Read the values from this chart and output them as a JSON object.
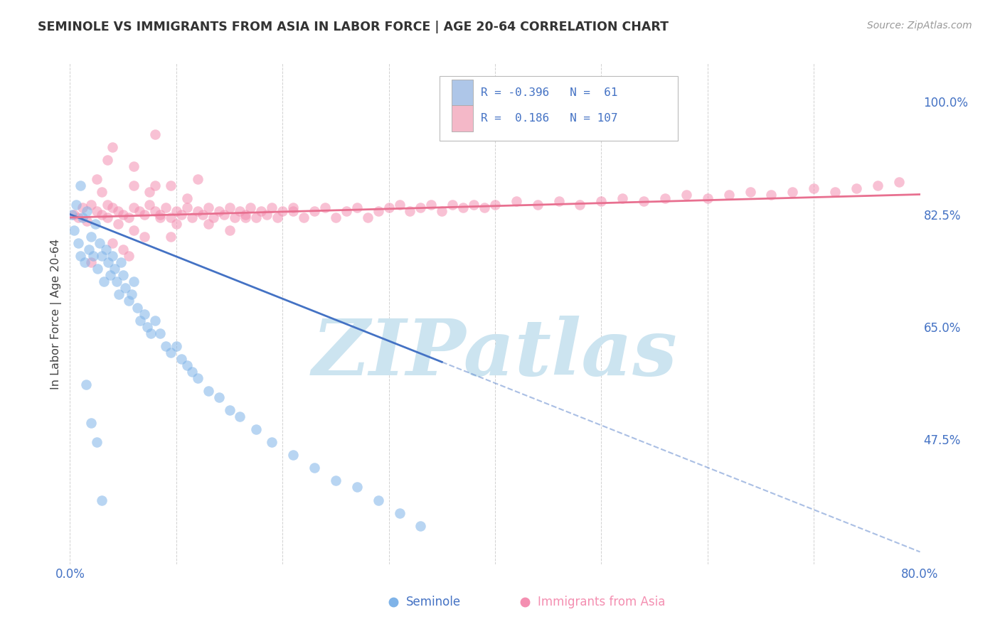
{
  "title": "SEMINOLE VS IMMIGRANTS FROM ASIA IN LABOR FORCE | AGE 20-64 CORRELATION CHART",
  "source_text": "Source: ZipAtlas.com",
  "ylabel": "In Labor Force | Age 20-64",
  "xlim": [
    0.0,
    0.8
  ],
  "ylim": [
    0.28,
    1.06
  ],
  "xticks": [
    0.0,
    0.1,
    0.2,
    0.3,
    0.4,
    0.5,
    0.6,
    0.7,
    0.8
  ],
  "xticklabels": [
    "0.0%",
    "",
    "",
    "",
    "",
    "",
    "",
    "",
    "80.0%"
  ],
  "yticks_right": [
    0.475,
    0.65,
    0.825,
    1.0
  ],
  "yticklabels_right": [
    "47.5%",
    "65.0%",
    "82.5%",
    "100.0%"
  ],
  "grid_color": "#cccccc",
  "background_color": "#ffffff",
  "watermark_text": "ZIPatlas",
  "watermark_color": "#cce4f0",
  "legend": {
    "R1": "-0.396",
    "N1": "61",
    "R2": "0.186",
    "N2": "107",
    "color1": "#aec6e8",
    "color2": "#f4b8c8"
  },
  "seminole_scatter_color": "#7fb3e8",
  "asia_scatter_color": "#f48fb1",
  "trend_blue_color": "#4472c4",
  "trend_pink_color": "#e87090",
  "seminole_x": [
    0.002,
    0.004,
    0.006,
    0.008,
    0.01,
    0.012,
    0.014,
    0.016,
    0.018,
    0.02,
    0.022,
    0.024,
    0.026,
    0.028,
    0.03,
    0.032,
    0.034,
    0.036,
    0.038,
    0.04,
    0.042,
    0.044,
    0.046,
    0.048,
    0.05,
    0.052,
    0.055,
    0.058,
    0.06,
    0.063,
    0.066,
    0.07,
    0.073,
    0.076,
    0.08,
    0.085,
    0.09,
    0.095,
    0.1,
    0.105,
    0.11,
    0.115,
    0.12,
    0.13,
    0.14,
    0.15,
    0.16,
    0.175,
    0.19,
    0.21,
    0.23,
    0.25,
    0.27,
    0.29,
    0.31,
    0.33,
    0.01,
    0.015,
    0.02,
    0.025,
    0.03
  ],
  "seminole_y": [
    0.825,
    0.8,
    0.84,
    0.78,
    0.76,
    0.82,
    0.75,
    0.83,
    0.77,
    0.79,
    0.76,
    0.81,
    0.74,
    0.78,
    0.76,
    0.72,
    0.77,
    0.75,
    0.73,
    0.76,
    0.74,
    0.72,
    0.7,
    0.75,
    0.73,
    0.71,
    0.69,
    0.7,
    0.72,
    0.68,
    0.66,
    0.67,
    0.65,
    0.64,
    0.66,
    0.64,
    0.62,
    0.61,
    0.62,
    0.6,
    0.59,
    0.58,
    0.57,
    0.55,
    0.54,
    0.52,
    0.51,
    0.49,
    0.47,
    0.45,
    0.43,
    0.41,
    0.4,
    0.38,
    0.36,
    0.34,
    0.87,
    0.56,
    0.5,
    0.47,
    0.38
  ],
  "asia_x": [
    0.004,
    0.008,
    0.012,
    0.016,
    0.02,
    0.025,
    0.03,
    0.035,
    0.04,
    0.045,
    0.05,
    0.055,
    0.06,
    0.065,
    0.07,
    0.075,
    0.08,
    0.085,
    0.09,
    0.095,
    0.1,
    0.105,
    0.11,
    0.115,
    0.12,
    0.125,
    0.13,
    0.135,
    0.14,
    0.145,
    0.15,
    0.155,
    0.16,
    0.165,
    0.17,
    0.175,
    0.18,
    0.185,
    0.19,
    0.195,
    0.2,
    0.21,
    0.22,
    0.23,
    0.24,
    0.25,
    0.26,
    0.27,
    0.28,
    0.29,
    0.3,
    0.31,
    0.32,
    0.33,
    0.34,
    0.35,
    0.36,
    0.37,
    0.38,
    0.39,
    0.4,
    0.42,
    0.44,
    0.46,
    0.48,
    0.5,
    0.52,
    0.54,
    0.56,
    0.58,
    0.6,
    0.62,
    0.64,
    0.66,
    0.68,
    0.7,
    0.72,
    0.74,
    0.76,
    0.78,
    0.06,
    0.08,
    0.04,
    0.02,
    0.1,
    0.15,
    0.025,
    0.03,
    0.035,
    0.06,
    0.075,
    0.095,
    0.11,
    0.04,
    0.08,
    0.12,
    0.055,
    0.07,
    0.045,
    0.035,
    0.06,
    0.085,
    0.095,
    0.05,
    0.13,
    0.165,
    0.21
  ],
  "asia_y": [
    0.825,
    0.82,
    0.835,
    0.815,
    0.84,
    0.83,
    0.825,
    0.82,
    0.835,
    0.83,
    0.825,
    0.82,
    0.835,
    0.83,
    0.825,
    0.84,
    0.83,
    0.825,
    0.835,
    0.82,
    0.83,
    0.825,
    0.835,
    0.82,
    0.83,
    0.825,
    0.835,
    0.82,
    0.83,
    0.825,
    0.835,
    0.82,
    0.83,
    0.825,
    0.835,
    0.82,
    0.83,
    0.825,
    0.835,
    0.82,
    0.83,
    0.835,
    0.82,
    0.83,
    0.835,
    0.82,
    0.83,
    0.835,
    0.82,
    0.83,
    0.835,
    0.84,
    0.83,
    0.835,
    0.84,
    0.83,
    0.84,
    0.835,
    0.84,
    0.835,
    0.84,
    0.845,
    0.84,
    0.845,
    0.84,
    0.845,
    0.85,
    0.845,
    0.85,
    0.855,
    0.85,
    0.855,
    0.86,
    0.855,
    0.86,
    0.865,
    0.86,
    0.865,
    0.87,
    0.875,
    0.9,
    0.87,
    0.78,
    0.75,
    0.81,
    0.8,
    0.88,
    0.86,
    0.91,
    0.87,
    0.86,
    0.87,
    0.85,
    0.93,
    0.95,
    0.88,
    0.76,
    0.79,
    0.81,
    0.84,
    0.8,
    0.82,
    0.79,
    0.77,
    0.81,
    0.82,
    0.83
  ],
  "trend_blue_x0": 0.0,
  "trend_blue_y0": 0.825,
  "trend_blue_x1": 0.35,
  "trend_blue_y1": 0.595,
  "trend_blue_dash_x1": 0.8,
  "trend_pink_x0": 0.0,
  "trend_pink_y0": 0.82,
  "trend_pink_x1": 0.8,
  "trend_pink_y1": 0.856
}
